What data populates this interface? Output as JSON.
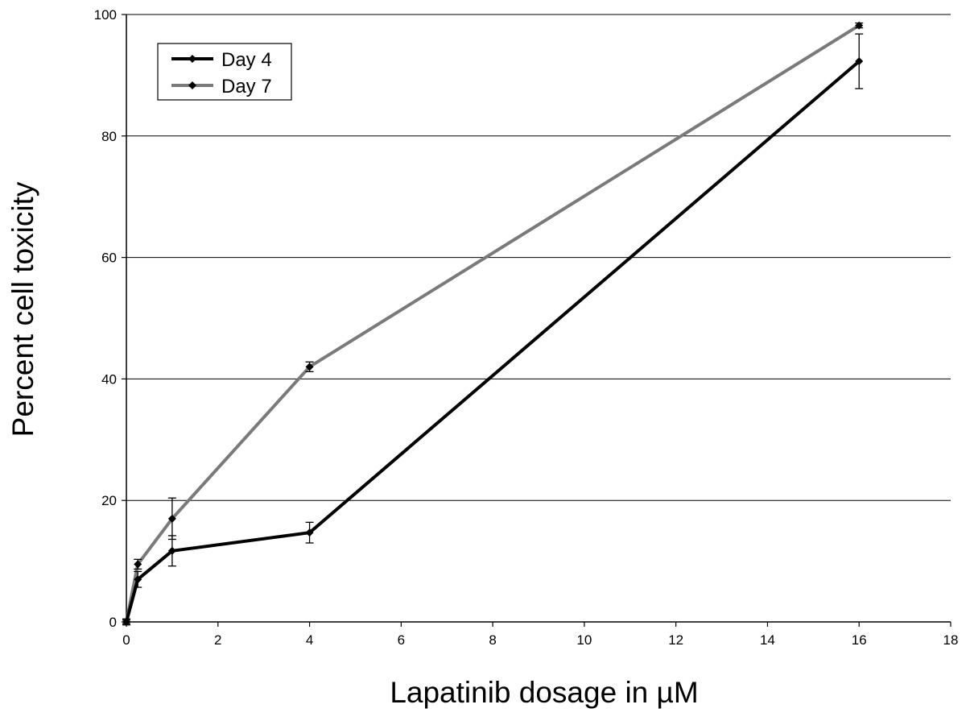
{
  "chart_data": {
    "type": "line",
    "title": "",
    "xlabel": "Lapatinib dosage in µM",
    "ylabel": "Percent cell toxicity",
    "xlim": [
      0,
      18
    ],
    "ylim": [
      0,
      100
    ],
    "xticks": [
      "0",
      "2",
      "4",
      "6",
      "8",
      "10",
      "12",
      "14",
      "16",
      "18"
    ],
    "yticks": [
      "0",
      "20",
      "40",
      "60",
      "80",
      "100"
    ],
    "grid": "horizontal",
    "legend_position": "top-left",
    "series": [
      {
        "name": "Day 4",
        "color": "#000000",
        "x": [
          0,
          0.25,
          1,
          4,
          16
        ],
        "y": [
          0,
          7,
          11.7,
          14.7,
          92.3
        ],
        "error": [
          0.5,
          1.3,
          2.5,
          1.7,
          4.5
        ]
      },
      {
        "name": "Day 7",
        "color": "#7a7a7a",
        "x": [
          0,
          0.25,
          1,
          4,
          16
        ],
        "y": [
          0,
          9.5,
          17,
          42,
          98.2
        ],
        "error": [
          0.3,
          0.8,
          3.4,
          0.8,
          0.4
        ]
      }
    ]
  }
}
